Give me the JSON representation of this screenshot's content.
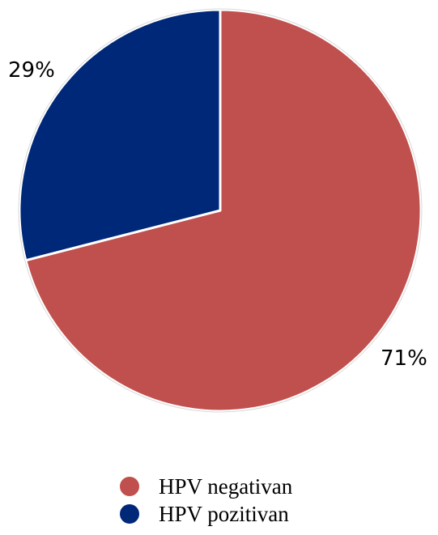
{
  "chart_data": {
    "type": "pie",
    "title": "",
    "slices": [
      {
        "name": "HPV negativan",
        "value": 71,
        "label": "71%",
        "color": "#c0504d"
      },
      {
        "name": "HPV pozitivan",
        "value": 29,
        "label": "29%",
        "color": "#002878"
      }
    ],
    "start_angle": "12 o'clock",
    "direction": "clockwise",
    "legend_position": "bottom"
  }
}
